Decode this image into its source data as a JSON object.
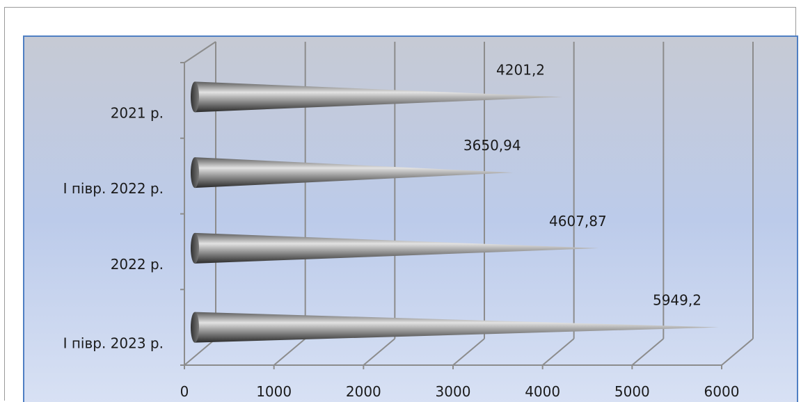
{
  "chart_data": {
    "type": "bar",
    "orientation": "horizontal",
    "style": "3d-cone",
    "categories": [
      "2021 р.",
      "І півр. 2022 р.",
      "2022 р.",
      "І півр. 2023 р."
    ],
    "values": [
      4201.2,
      3650.94,
      4607.87,
      5949.2
    ],
    "value_labels": [
      "4201,2",
      "3650,94",
      "4607,87",
      "5949,2"
    ],
    "xlim": [
      0,
      6000
    ],
    "x_ticks": [
      0,
      1000,
      2000,
      3000,
      4000,
      5000,
      6000
    ],
    "x_tick_labels": [
      "0",
      "1000",
      "2000",
      "3000",
      "4000",
      "5000",
      "6000"
    ],
    "grid": true,
    "legend": "none",
    "title": "",
    "xlabel": "",
    "ylabel": ""
  },
  "colors": {
    "plot_bg_top": "#c8ccd8",
    "plot_bg_bottom": "#d6e0f5",
    "plot_border": "#4f7fc3",
    "gridline": "#8c8c8c",
    "cone_dark": "#3a3a3a",
    "cone_light": "#d9d9d9"
  }
}
